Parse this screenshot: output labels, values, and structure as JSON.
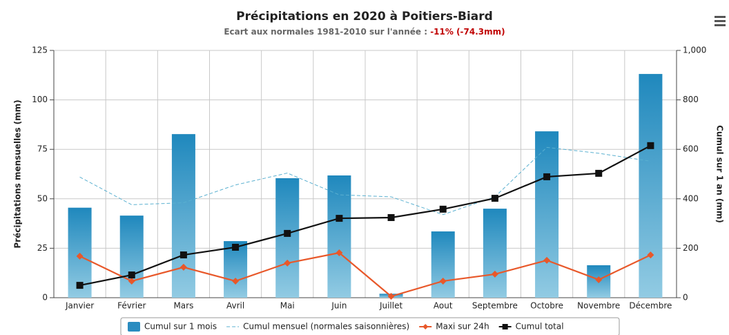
{
  "chart_data": {
    "type": "combo",
    "title": "Précipitations en 2020 à Poitiers-Biard",
    "subtitle": "Ecart aux normales 1981-2010 sur l'année : ",
    "subtitle_highlight": "-11% (-74.3mm)",
    "ylabel": "Précipitations mensuelles (mm)",
    "y2label": "Cumul sur 1 an (mm)",
    "categories": [
      "Janvier",
      "Février",
      "Mars",
      "Avril",
      "Mai",
      "Juin",
      "Juillet",
      "Aout",
      "Septembre",
      "Octobre",
      "Novembre",
      "Décembre"
    ],
    "ylim": [
      0,
      125
    ],
    "yticks": [
      0,
      25,
      50,
      75,
      100,
      125
    ],
    "y2lim": [
      0,
      1000
    ],
    "y2ticks": [
      0,
      200,
      400,
      600,
      800,
      {
        "value": 1000,
        "label": "1,000"
      }
    ],
    "grid": true,
    "legend": "bottom",
    "series": [
      {
        "name": "Cumul sur 1 mois",
        "type": "bar",
        "color": "#2a8cc0",
        "values": [
          45.5,
          41.5,
          82.7,
          28.6,
          60.4,
          61.8,
          2,
          33.5,
          45,
          84.1,
          16.4,
          113.1
        ]
      },
      {
        "name": "Cumul mensuel (normales saisonnières)",
        "type": "dashed",
        "color": "#5ab0d0",
        "values": [
          61,
          47,
          48,
          57,
          63,
          52,
          51,
          42,
          51,
          76,
          73,
          69
        ]
      },
      {
        "name": "Maxi sur 24h",
        "type": "line",
        "color": "#e8582a",
        "values": [
          21,
          8.4,
          15.4,
          8.4,
          17.5,
          22.7,
          0.7,
          8.4,
          11.9,
          18.9,
          9.1,
          21.6
        ]
      },
      {
        "name": "Cumul total",
        "type": "line",
        "color": "#111111",
        "axis": "y2",
        "values": [
          50,
          92,
          173,
          204,
          260,
          321,
          324,
          358,
          402,
          489,
          503,
          615
        ]
      }
    ]
  }
}
